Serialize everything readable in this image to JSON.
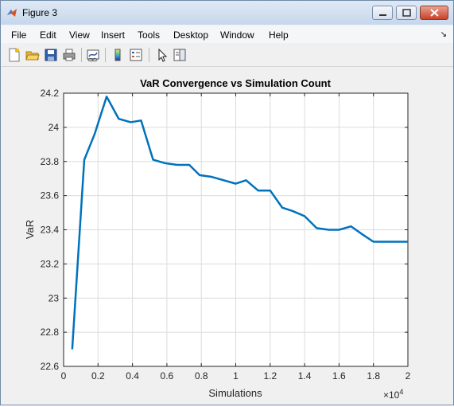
{
  "window": {
    "title": "Figure 3"
  },
  "menubar": {
    "items": [
      "File",
      "Edit",
      "View",
      "Insert",
      "Tools",
      "Desktop",
      "Window",
      "Help"
    ]
  },
  "toolbar": {
    "buttons": [
      "new-figure-icon",
      "open-file-icon",
      "save-icon",
      "print-icon",
      "link-plot-icon",
      "colorbar-icon",
      "legend-icon",
      "pointer-icon",
      "property-editor-icon"
    ]
  },
  "colors": {
    "line": "#0072bd",
    "titlebar": "#c6d7ec",
    "close": "#c7432a"
  },
  "chart_data": {
    "type": "line",
    "title": "VaR Convergence vs Simulation Count",
    "xlabel": "Simulations",
    "ylabel": "VaR",
    "x_exponent_label": "×10",
    "x_exponent_power": "4",
    "xlim": [
      0,
      20000
    ],
    "ylim": [
      22.6,
      24.2
    ],
    "xticks": [
      0,
      2000,
      4000,
      6000,
      8000,
      10000,
      12000,
      14000,
      16000,
      18000,
      20000
    ],
    "xtick_labels": [
      "0",
      "0.2",
      "0.4",
      "0.6",
      "0.8",
      "1",
      "1.2",
      "1.4",
      "1.6",
      "1.8",
      "2"
    ],
    "yticks": [
      22.6,
      22.8,
      23.0,
      23.2,
      23.4,
      23.6,
      23.8,
      24.0,
      24.2
    ],
    "ytick_labels": [
      "22.6",
      "22.8",
      "23",
      "23.2",
      "23.4",
      "23.6",
      "23.8",
      "24",
      "24.2"
    ],
    "grid": true,
    "x": [
      500,
      1200,
      1800,
      2500,
      3200,
      3900,
      4500,
      5200,
      5900,
      6600,
      7300,
      7900,
      8600,
      9300,
      10000,
      10600,
      11300,
      12000,
      12700,
      13300,
      14000,
      14700,
      15400,
      16000,
      16700,
      17400,
      18000,
      18700,
      19400,
      20000
    ],
    "y": [
      22.7,
      23.81,
      23.96,
      24.18,
      24.05,
      24.03,
      24.04,
      23.81,
      23.79,
      23.78,
      23.78,
      23.72,
      23.71,
      23.69,
      23.67,
      23.69,
      23.63,
      23.63,
      23.53,
      23.51,
      23.48,
      23.41,
      23.4,
      23.4,
      23.42,
      23.37,
      23.33,
      23.33,
      23.33,
      23.33
    ]
  }
}
